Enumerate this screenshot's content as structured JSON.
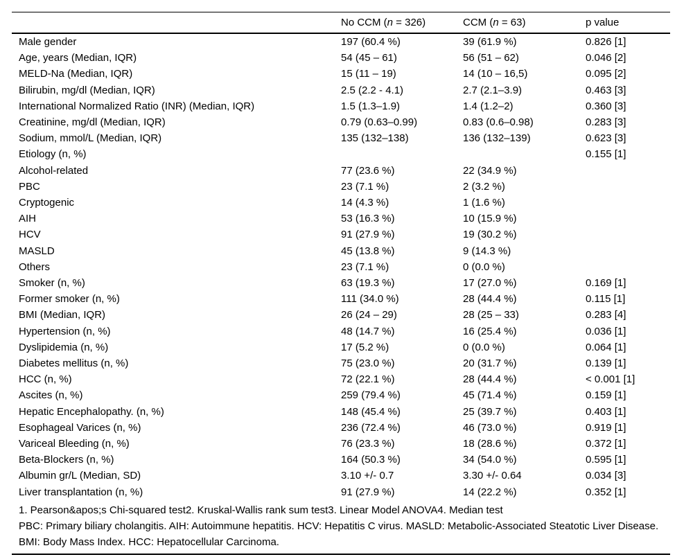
{
  "table": {
    "header": {
      "col1": "",
      "no_ccm": {
        "prefix": "No CCM (",
        "n": "n",
        "suffix": " = 326)"
      },
      "ccm": {
        "prefix": "CCM (",
        "n": "n",
        "suffix": " = 63)"
      },
      "p": "p value"
    },
    "rows": [
      [
        "Male gender",
        "197 (60.4 %)",
        "39 (61.9 %)",
        "0.826 [1]"
      ],
      [
        "Age, years (Median, IQR)",
        "54 (45 – 61)",
        "56 (51 – 62)",
        "0.046 [2]"
      ],
      [
        "MELD-Na (Median, IQR)",
        "15 (11 – 19)",
        "14 (10 – 16,5)",
        "0.095 [2]"
      ],
      [
        "Bilirubin, mg/dl (Median, IQR)",
        "2.5 (2.2 - 4.1)",
        "2.7 (2.1–3.9)",
        "0.463 [3]"
      ],
      [
        "International Normalized Ratio (INR) (Median, IQR)",
        "1.5 (1.3–1.9)",
        "1.4 (1.2–2)",
        "0.360 [3]"
      ],
      [
        "Creatinine, mg/dl (Median, IQR)",
        "0.79 (0.63–0.99)",
        "0.83 (0.6–0.98)",
        "0.283 [3]"
      ],
      [
        "Sodium, mmol/L (Median, IQR)",
        "135 (132–138)",
        "136 (132–139)",
        "0.623 [3]"
      ],
      [
        "Etiology (n, %)",
        "",
        "",
        "0.155 [1]"
      ],
      [
        "Alcohol-related",
        "77 (23.6 %)",
        "22 (34.9 %)",
        ""
      ],
      [
        "PBC",
        "23 (7.1 %)",
        "2 (3.2 %)",
        ""
      ],
      [
        "Cryptogenic",
        "14 (4.3 %)",
        "1 (1.6 %)",
        ""
      ],
      [
        "AIH",
        "53 (16.3 %)",
        "10 (15.9 %)",
        ""
      ],
      [
        "HCV",
        "91 (27.9 %)",
        "19 (30.2 %)",
        ""
      ],
      [
        "MASLD",
        "45 (13.8 %)",
        "9 (14.3 %)",
        ""
      ],
      [
        "Others",
        "23 (7.1 %)",
        "0 (0.0 %)",
        ""
      ],
      [
        "Smoker (n, %)",
        "63 (19.3 %)",
        "17 (27.0 %)",
        "0.169 [1]"
      ],
      [
        "Former smoker (n, %)",
        "111 (34.0 %)",
        "28 (44.4 %)",
        "0.115 [1]"
      ],
      [
        "BMI (Median, IQR)",
        "26 (24 – 29)",
        "28 (25 – 33)",
        "0.283 [4]"
      ],
      [
        "Hypertension (n, %)",
        "48 (14.7 %)",
        "16 (25.4 %)",
        "0.036 [1]"
      ],
      [
        "Dyslipidemia (n, %)",
        "17 (5.2 %)",
        "0 (0.0 %)",
        "0.064 [1]"
      ],
      [
        "Diabetes mellitus (n, %)",
        "75 (23.0 %)",
        "20 (31.7 %)",
        "0.139 [1]"
      ],
      [
        "HCC (n, %)",
        "72 (22.1 %)",
        "28 (44.4 %)",
        "< 0.001 [1]"
      ],
      [
        "Ascites (n, %)",
        "259 (79.4 %)",
        "45 (71.4 %)",
        "0.159 [1]"
      ],
      [
        "Hepatic Encephalopathy. (n, %)",
        "148 (45.4 %)",
        "25 (39.7 %)",
        "0.403 [1]"
      ],
      [
        "Esophageal Varices (n, %)",
        "236 (72.4 %)",
        "46 (73.0 %)",
        "0.919 [1]"
      ],
      [
        "Variceal Bleeding (n, %)",
        "76 (23.3 %)",
        "18 (28.6 %)",
        "0.372 [1]"
      ],
      [
        "Beta-Blockers (n, %)",
        "164 (50.3 %)",
        "34 (54.0 %)",
        "0.595 [1]"
      ],
      [
        "Albumin gr/L (Median, SD)",
        "3.10 +/- 0.7",
        "3.30 +/- 0.64",
        "0.034 [3]"
      ],
      [
        "Liver transplantation (n, %)",
        "91 (27.9 %)",
        "14 (22.2 %)",
        "0.352 [1]"
      ]
    ],
    "footnotes": [
      "1. Pearson&apos;s Chi-squared test2. Kruskal-Wallis rank sum test3. Linear Model ANOVA4. Median test",
      "PBC: Primary biliary cholangitis. AIH: Autoimmune hepatitis. HCV: Hepatitis C virus. MASLD: Metabolic-Associated Steatotic Liver Disease. BMI: Body Mass Index. HCC: Hepatocellular Carcinoma."
    ]
  }
}
